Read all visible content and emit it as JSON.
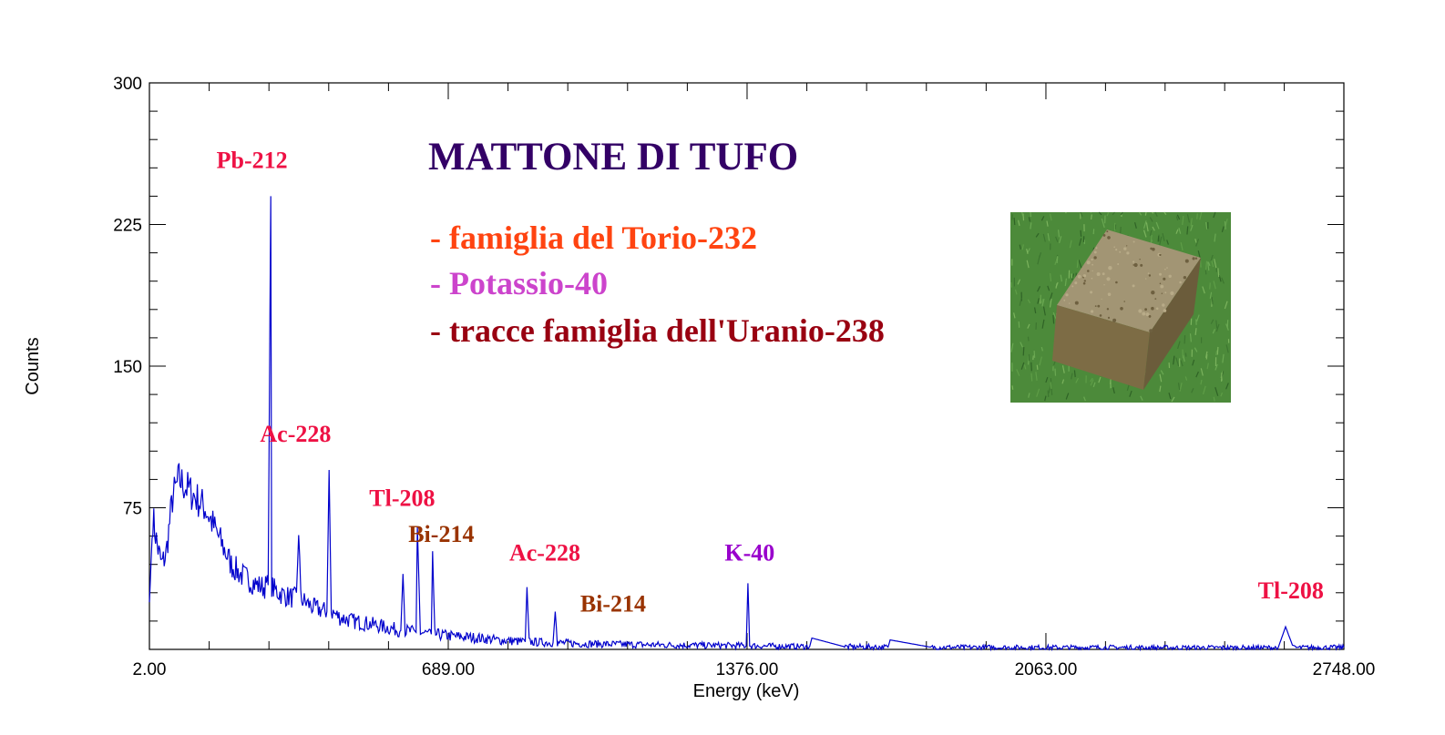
{
  "chart_data": {
    "type": "line",
    "title": "MATTONE DI TUFO",
    "xlabel": "Energy (keV)",
    "ylabel": "Counts",
    "xlim": [
      2.0,
      2748.0
    ],
    "ylim": [
      0,
      300
    ],
    "x_ticks": [
      "2.00",
      "689.00",
      "1376.00",
      "2063.00",
      "2748.00"
    ],
    "y_ticks": [
      "75",
      "150",
      "225",
      "300"
    ],
    "grid": false,
    "series": [
      {
        "color": "#0000cc",
        "x": [
          2,
          10,
          20,
          30,
          40,
          55,
          70,
          90,
          110,
          130,
          150,
          170,
          190,
          210,
          230,
          250,
          265,
          275,
          281,
          283,
          287,
          300,
          320,
          340,
          345,
          350,
          360,
          380,
          410,
          415,
          420,
          440,
          470,
          520,
          560,
          580,
          585,
          590,
          615,
          618,
          625,
          650,
          653,
          658,
          700,
          760,
          800,
          866,
          870,
          875,
          930,
          935,
          940,
          1000,
          1100,
          1200,
          1350,
          1374,
          1378,
          1382,
          1400,
          1520,
          1525,
          1600,
          1700,
          1705,
          1800,
          2000,
          2200,
          2300,
          2400,
          2597,
          2614,
          2632,
          2700,
          2748
        ],
        "y": [
          25,
          70,
          55,
          45,
          50,
          80,
          90,
          85,
          80,
          75,
          65,
          55,
          45,
          40,
          37,
          34,
          33,
          34,
          240,
          34,
          32,
          30,
          28,
          27,
          65,
          27,
          25,
          22,
          20,
          95,
          20,
          17,
          15,
          13,
          11,
          10,
          40,
          10,
          9,
          65,
          9,
          8,
          52,
          8,
          7,
          6,
          5,
          4,
          33,
          4,
          3.5,
          20,
          3.5,
          3,
          2.6,
          2.3,
          2,
          2,
          35,
          2,
          1.8,
          1.5,
          6,
          1.4,
          1.2,
          5,
          1.1,
          1,
          1,
          0.9,
          0.9,
          0.9,
          12,
          0.9,
          1,
          1
        ]
      }
    ],
    "annotations": [
      {
        "text": "Pb-212",
        "x": 238,
        "y": 255,
        "color": "#ee1144"
      },
      {
        "text": "Ac-228",
        "x": 338,
        "y": 110,
        "color": "#ee1144"
      },
      {
        "text": "Tl-208",
        "x": 583,
        "y": 76,
        "color": "#ee1144"
      },
      {
        "text": "Bi-214",
        "x": 673,
        "y": 57,
        "color": "#993300"
      },
      {
        "text": "Ac-228",
        "x": 911,
        "y": 47,
        "color": "#ee1144"
      },
      {
        "text": "Bi-214",
        "x": 1068,
        "y": 20,
        "color": "#993300"
      },
      {
        "text": "K-40",
        "x": 1382,
        "y": 47,
        "color": "#9900cc"
      },
      {
        "text": "Tl-208",
        "x": 2626,
        "y": 27,
        "color": "#ee1144"
      }
    ],
    "legend": [
      {
        "text": "- famiglia del Torio-232",
        "color": "#ff4411"
      },
      {
        "text": "- Potassio-40",
        "color": "#cc44cc"
      },
      {
        "text": "- tracce famiglia dell'Uranio-238",
        "color": "#990011"
      }
    ],
    "title_color": "#330066"
  },
  "photo": {
    "name": "tuff-brick-photo",
    "grass_color": "#4c8a3a",
    "brick_color": "#8e8058"
  }
}
